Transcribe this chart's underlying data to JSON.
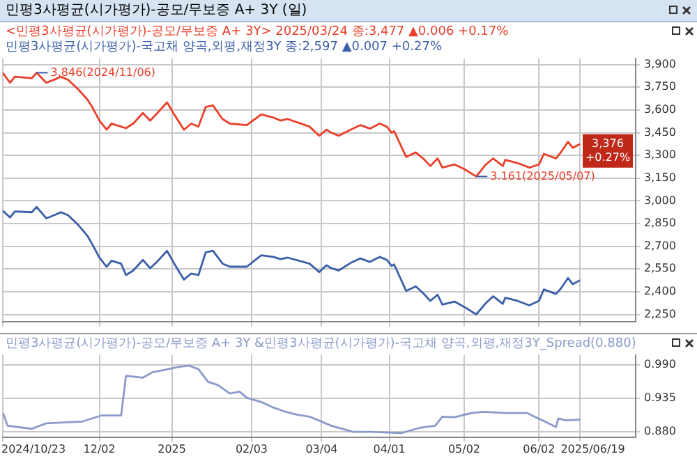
{
  "chart_data": [
    {
      "type": "line",
      "title": "민평3사평균(시가평가)-공모/무보증 A+ 3Y (일)",
      "legend": "top left",
      "grid": true,
      "line_style": "solid",
      "marker": "none",
      "tick_labels": "y",
      "x": [
        "2024-10-23",
        "2024-10-26",
        "2024-10-28",
        "2024-11-04",
        "2024-11-06",
        "2024-11-10",
        "2024-11-14",
        "2024-11-16",
        "2024-11-19",
        "2024-11-23",
        "2024-11-27",
        "2024-11-29",
        "2024-12-02",
        "2024-12-05",
        "2024-12-07",
        "2024-12-11",
        "2024-12-13",
        "2024-12-16",
        "2024-12-20",
        "2024-12-23",
        "2024-12-26",
        "2024-12-30",
        "2025-01-02",
        "2025-01-06",
        "2025-01-09",
        "2025-01-12",
        "2025-01-15",
        "2025-01-18",
        "2025-01-22",
        "2025-01-25",
        "2025-02-01",
        "2025-02-07",
        "2025-02-12",
        "2025-02-15",
        "2025-02-18",
        "2025-02-27",
        "2025-03-03",
        "2025-03-06",
        "2025-03-08",
        "2025-03-11",
        "2025-03-16",
        "2025-03-20",
        "2025-03-24",
        "2025-03-28",
        "2025-03-31",
        "2025-04-02",
        "2025-04-03",
        "2025-04-08",
        "2025-04-12",
        "2025-04-15",
        "2025-04-18",
        "2025-04-21",
        "2025-04-23",
        "2025-04-28",
        "2025-05-02",
        "2025-05-07",
        "2025-05-11",
        "2025-05-14",
        "2025-05-18",
        "2025-05-19",
        "2025-05-24",
        "2025-05-29",
        "2025-06-02",
        "2025-06-04",
        "2025-06-09",
        "2025-06-11",
        "2025-06-14",
        "2025-06-16",
        "2025-06-19"
      ],
      "series": [
        {
          "name": "<민평3사평균(시가평가)-공모/무보증 A+ 3Y> 2025/03/24 종:3,477 ▲0.006 +0.17%",
          "color": "#e8402a",
          "values": [
            3845,
            3780,
            3820,
            3810,
            3846,
            3780,
            3805,
            3820,
            3800,
            3740,
            3670,
            3620,
            3530,
            3470,
            3510,
            3490,
            3480,
            3510,
            3580,
            3530,
            3580,
            3650,
            3570,
            3470,
            3510,
            3490,
            3620,
            3630,
            3540,
            3510,
            3500,
            3570,
            3550,
            3530,
            3540,
            3490,
            3430,
            3470,
            3450,
            3430,
            3470,
            3500,
            3477,
            3510,
            3490,
            3450,
            3460,
            3290,
            3320,
            3280,
            3230,
            3280,
            3220,
            3240,
            3210,
            3161,
            3240,
            3280,
            3230,
            3270,
            3250,
            3220,
            3240,
            3310,
            3280,
            3320,
            3390,
            3350,
            3376
          ]
        },
        {
          "name": "민평3사평균(시가평가)-국고채 양곡,외평,재정3Y 종:2,597 ▲0.007 +0.27%",
          "color": "#3a5fa8",
          "values": [
            2935,
            2890,
            2930,
            2925,
            2960,
            2885,
            2910,
            2925,
            2905,
            2845,
            2770,
            2715,
            2625,
            2565,
            2605,
            2585,
            2510,
            2540,
            2610,
            2555,
            2600,
            2670,
            2585,
            2480,
            2520,
            2510,
            2660,
            2670,
            2585,
            2565,
            2565,
            2640,
            2630,
            2615,
            2625,
            2585,
            2530,
            2575,
            2555,
            2540,
            2590,
            2620,
            2597,
            2630,
            2610,
            2570,
            2580,
            2405,
            2435,
            2390,
            2340,
            2380,
            2315,
            2335,
            2300,
            2250,
            2325,
            2370,
            2320,
            2360,
            2340,
            2310,
            2340,
            2415,
            2385,
            2420,
            2490,
            2450,
            2476
          ]
        }
      ],
      "xlim": [
        "2024-10-23",
        "2025-07-12"
      ],
      "xticks": [
        "2024-10-23",
        "2024-12-02",
        "2025-01-01",
        "2025-02-03",
        "2025-03-04",
        "2025-04-01",
        "2025-05-02",
        "2025-06-02",
        "2025-06-19"
      ],
      "ylim": [
        2200,
        3940
      ],
      "yticks": [
        {
          "value": 2250,
          "label": "2,250"
        },
        {
          "value": 2400,
          "label": "2,400"
        },
        {
          "value": 2550,
          "label": "2,550"
        },
        {
          "value": 2700,
          "label": "2,700"
        },
        {
          "value": 2850,
          "label": "2,850"
        },
        {
          "value": 3000,
          "label": "3,000"
        },
        {
          "value": 3150,
          "label": "3,150"
        },
        {
          "value": 3300,
          "label": "3,300"
        },
        {
          "value": 3450,
          "label": "3,450"
        },
        {
          "value": 3600,
          "label": "3,600"
        },
        {
          "value": 3750,
          "label": "3,750"
        },
        {
          "value": 3900,
          "label": "3,900"
        }
      ],
      "annotations": [
        {
          "text": "3.846(2024/11/06)",
          "x": "2024-11-06",
          "y": 3846
        },
        {
          "text": "3.161(2025/05/07)",
          "x": "2025-05-07",
          "y": 3161
        },
        {
          "text": "3,376",
          "x": "2025-06-19",
          "y": 3376
        },
        "+0.27%"
      ]
    },
    {
      "type": "line",
      "legend": "top left",
      "grid": true,
      "line_style": "solid",
      "marker": "none",
      "x": [
        "2024-10-23",
        "2024-10-25",
        "2024-11-04",
        "2024-11-10",
        "2024-11-25",
        "2024-12-03",
        "2024-12-11",
        "2024-12-13",
        "2024-12-20",
        "2024-12-24",
        "2024-12-28",
        "2025-01-03",
        "2025-01-08",
        "2025-01-12",
        "2025-01-16",
        "2025-01-20",
        "2025-01-25",
        "2025-01-29",
        "2025-02-01",
        "2025-02-07",
        "2025-02-12",
        "2025-02-17",
        "2025-02-22",
        "2025-02-27",
        "2025-03-08",
        "2025-03-17",
        "2025-03-24",
        "2025-04-06",
        "2025-04-14",
        "2025-04-20",
        "2025-04-23",
        "2025-04-28",
        "2025-05-05",
        "2025-05-10",
        "2025-05-19",
        "2025-05-28",
        "2025-05-31",
        "2025-06-05",
        "2025-06-09",
        "2025-06-10",
        "2025-06-13",
        "2025-06-19"
      ],
      "series": [
        {
          "name": "민평3사평균(시가평가)-공모/무보증 A+ 3Y &민평3사평균(시가평가)-국고채 양곡,외평,재정3Y_Spread(0.880)",
          "color": "#8a9acb",
          "values": [
            0.912,
            0.89,
            0.885,
            0.894,
            0.897,
            0.907,
            0.907,
            0.972,
            0.969,
            0.978,
            0.981,
            0.986,
            0.989,
            0.983,
            0.962,
            0.957,
            0.943,
            0.946,
            0.936,
            0.929,
            0.92,
            0.913,
            0.908,
            0.905,
            0.89,
            0.88,
            0.88,
            0.878,
            0.887,
            0.89,
            0.905,
            0.904,
            0.911,
            0.913,
            0.911,
            0.911,
            0.905,
            0.896,
            0.888,
            0.902,
            0.899,
            0.9
          ]
        }
      ],
      "xlim": [
        "2024-10-23",
        "2025-07-12"
      ],
      "xticks": [
        {
          "value": "2024-10-23",
          "label": "2024/10/23"
        },
        {
          "value": "2024-12-02",
          "label": "12/02"
        },
        {
          "value": "2025-01-01",
          "label": "2025"
        },
        {
          "value": "2025-02-03",
          "label": "02/03"
        },
        {
          "value": "2025-03-04",
          "label": "03/04"
        },
        {
          "value": "2025-04-01",
          "label": "04/01"
        },
        {
          "value": "2025-05-02",
          "label": "05/02"
        },
        {
          "value": "2025-06-02",
          "label": "06/02"
        },
        {
          "value": "2025-06-19",
          "label": "2025/06/19"
        }
      ],
      "ylim": [
        0.871,
        1.006
      ],
      "yticks": [
        {
          "value": 0.88,
          "label": "0.880"
        },
        0.935,
        {
          "value": 0.99,
          "label": "0.990"
        }
      ]
    }
  ]
}
